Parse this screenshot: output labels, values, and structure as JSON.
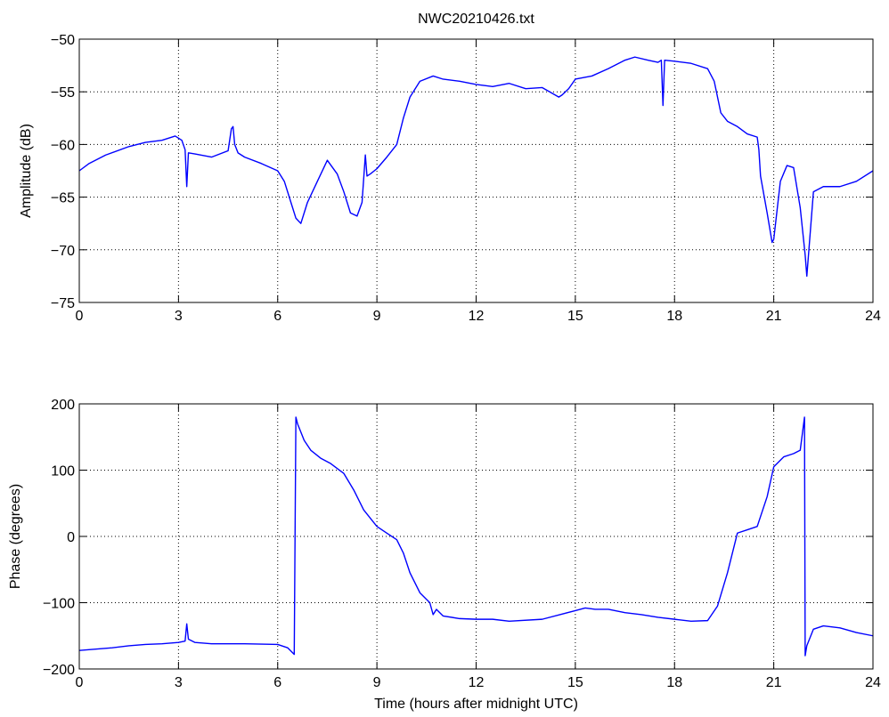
{
  "figure_title": "NWC20210426.txt",
  "colors": {
    "series": "#0000ff",
    "axes": "#000000",
    "background": "#ffffff"
  },
  "chart_data": [
    {
      "type": "line",
      "id": "amplitude",
      "title": "NWC20210426.txt",
      "xlabel": "",
      "ylabel": "Amplitude (dB)",
      "xlim": [
        0,
        24
      ],
      "ylim": [
        -75,
        -50
      ],
      "xticks": [
        0,
        3,
        6,
        9,
        12,
        15,
        18,
        21,
        24
      ],
      "xtick_labels": [
        "0",
        "3",
        "6",
        "9",
        "12",
        "15",
        "18",
        "21",
        "24"
      ],
      "yticks": [
        -75,
        -70,
        -65,
        -60,
        -55,
        -50
      ],
      "ytick_labels": [
        "−75",
        "−70",
        "−65",
        "−60",
        "−55",
        "−50"
      ],
      "grid": true,
      "series": [
        {
          "color": "#0000ff",
          "x": [
            0,
            0.3,
            0.8,
            1.5,
            2.0,
            2.5,
            2.9,
            3.1,
            3.2,
            3.25,
            3.3,
            3.5,
            4.0,
            4.5,
            4.6,
            4.65,
            4.7,
            4.8,
            5.0,
            5.5,
            6.0,
            6.2,
            6.4,
            6.55,
            6.7,
            6.9,
            7.2,
            7.5,
            7.8,
            8.0,
            8.2,
            8.4,
            8.55,
            8.65,
            8.7,
            8.8,
            9.0,
            9.3,
            9.6,
            9.8,
            10.0,
            10.3,
            10.7,
            11.0,
            11.5,
            12.0,
            12.5,
            13.0,
            13.5,
            14.0,
            14.5,
            14.6,
            14.8,
            15.0,
            15.5,
            16.0,
            16.5,
            16.8,
            17.2,
            17.5,
            17.6,
            17.65,
            17.7,
            18.0,
            18.5,
            19.0,
            19.2,
            19.4,
            19.6,
            19.9,
            20.2,
            20.5,
            20.55,
            20.6,
            20.8,
            20.95,
            21.0,
            21.2,
            21.4,
            21.6,
            21.8,
            21.95,
            22.0,
            22.2,
            22.5,
            23.0,
            23.5,
            24.0
          ],
          "y": [
            -62.5,
            -61.8,
            -61.0,
            -60.2,
            -59.8,
            -59.6,
            -59.2,
            -59.6,
            -60.5,
            -64.0,
            -60.8,
            -60.9,
            -61.2,
            -60.6,
            -58.5,
            -58.3,
            -60.0,
            -60.8,
            -61.2,
            -61.8,
            -62.5,
            -63.5,
            -65.5,
            -67.0,
            -67.5,
            -65.5,
            -63.5,
            -61.5,
            -62.8,
            -64.5,
            -66.5,
            -66.8,
            -65.5,
            -61.0,
            -63.0,
            -62.8,
            -62.3,
            -61.2,
            -60.0,
            -57.5,
            -55.5,
            -54.0,
            -53.5,
            -53.8,
            -54.0,
            -54.3,
            -54.5,
            -54.2,
            -54.7,
            -54.6,
            -55.5,
            -55.3,
            -54.7,
            -53.8,
            -53.5,
            -52.8,
            -52.0,
            -51.7,
            -52.0,
            -52.2,
            -52.0,
            -56.3,
            -52.0,
            -52.1,
            -52.3,
            -52.8,
            -54.0,
            -57.0,
            -57.8,
            -58.3,
            -59.0,
            -59.3,
            -60.5,
            -63.0,
            -66.5,
            -69.3,
            -69.0,
            -63.5,
            -62.0,
            -62.2,
            -66.0,
            -70.5,
            -72.5,
            -64.5,
            -64.0,
            -64.0,
            -63.5,
            -62.5
          ]
        }
      ]
    },
    {
      "type": "line",
      "id": "phase",
      "title": "",
      "xlabel": "Time (hours after midnight UTC)",
      "ylabel": "Phase (degrees)",
      "xlim": [
        0,
        24
      ],
      "ylim": [
        -200,
        200
      ],
      "xticks": [
        0,
        3,
        6,
        9,
        12,
        15,
        18,
        21,
        24
      ],
      "xtick_labels": [
        "0",
        "3",
        "6",
        "9",
        "12",
        "15",
        "18",
        "21",
        "24"
      ],
      "yticks": [
        -200,
        -100,
        0,
        100,
        200
      ],
      "ytick_labels": [
        "−200",
        "−100",
        "0",
        "100",
        "200"
      ],
      "grid": true,
      "series": [
        {
          "color": "#0000ff",
          "x": [
            0,
            0.5,
            1.0,
            1.5,
            2.0,
            2.5,
            3.0,
            3.2,
            3.25,
            3.3,
            3.5,
            4.0,
            5.0,
            6.0,
            6.3,
            6.5,
            6.55,
            6.6,
            6.8,
            7.0,
            7.3,
            7.6,
            8.0,
            8.3,
            8.6,
            9.0,
            9.3,
            9.6,
            9.8,
            10.0,
            10.3,
            10.6,
            10.7,
            10.8,
            11.0,
            11.5,
            12.0,
            12.5,
            13.0,
            14.0,
            15.0,
            15.3,
            15.6,
            16.0,
            16.5,
            17.0,
            17.5,
            18.0,
            18.5,
            19.0,
            19.3,
            19.6,
            19.9,
            20.2,
            20.5,
            20.8,
            21.0,
            21.3,
            21.6,
            21.8,
            21.93,
            21.95,
            22.0,
            22.2,
            22.5,
            23.0,
            23.5,
            24.0
          ],
          "y": [
            -172,
            -170,
            -168,
            -165,
            -163,
            -162,
            -160,
            -158,
            -132,
            -155,
            -160,
            -162,
            -162,
            -163,
            -168,
            -178,
            180,
            170,
            145,
            130,
            118,
            110,
            95,
            70,
            40,
            15,
            5,
            -5,
            -25,
            -55,
            -85,
            -100,
            -118,
            -110,
            -120,
            -124,
            -125,
            -125,
            -128,
            -125,
            -112,
            -108,
            -110,
            -110,
            -115,
            -118,
            -122,
            -125,
            -128,
            -127,
            -105,
            -55,
            5,
            10,
            15,
            60,
            105,
            120,
            125,
            130,
            180,
            -180,
            -165,
            -140,
            -135,
            -138,
            -145,
            -150
          ]
        }
      ]
    }
  ]
}
